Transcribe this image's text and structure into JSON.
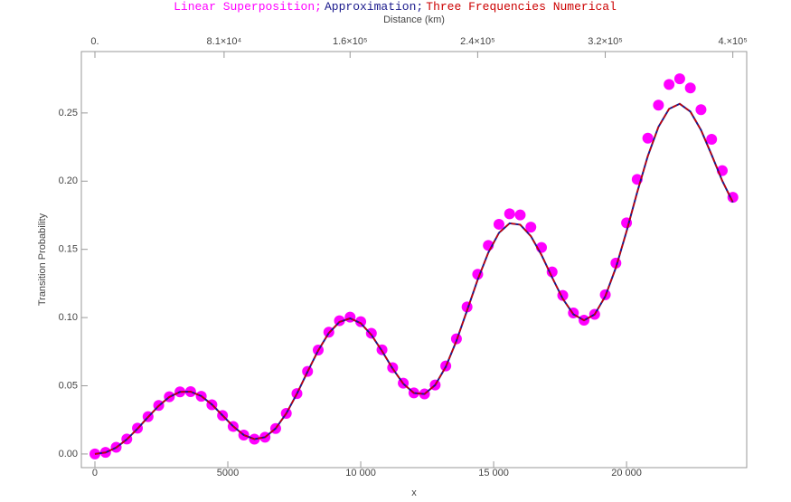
{
  "chart_data": {
    "type": "line",
    "x_label": "x",
    "x2_label": "Distance (km)",
    "y_label": "Transition Probability",
    "x": [
      0,
      400,
      800,
      1200,
      1600,
      2000,
      2400,
      2800,
      3200,
      3600,
      4000,
      4400,
      4800,
      5200,
      5600,
      6000,
      6400,
      6800,
      7200,
      7600,
      8000,
      8400,
      8800,
      9200,
      9600,
      10000,
      10400,
      10800,
      11200,
      11600,
      12000,
      12400,
      12800,
      13200,
      13600,
      14000,
      14400,
      14800,
      15200,
      15600,
      16000,
      16400,
      16800,
      17200,
      17600,
      18000,
      18400,
      18800,
      19200,
      19600,
      20000,
      20400,
      20800,
      21200,
      21600,
      22000,
      22400,
      22800,
      23200,
      23600,
      24000
    ],
    "series": [
      {
        "name": "Linear Superposition;",
        "color": "#ff00ff",
        "mode": "markers",
        "values": [
          0,
          0.0012,
          0.0049,
          0.011,
          0.0189,
          0.0274,
          0.0356,
          0.042,
          0.0455,
          0.0457,
          0.0423,
          0.0361,
          0.0282,
          0.0202,
          0.0139,
          0.0109,
          0.0123,
          0.0187,
          0.0298,
          0.0443,
          0.0605,
          0.0762,
          0.0893,
          0.0977,
          0.1003,
          0.097,
          0.0885,
          0.0764,
          0.0633,
          0.0519,
          0.0448,
          0.044,
          0.0506,
          0.0645,
          0.0844,
          0.1078,
          0.1317,
          0.1529,
          0.1684,
          0.1761,
          0.1752,
          0.1663,
          0.1514,
          0.1335,
          0.1162,
          0.1034,
          0.0981,
          0.1024,
          0.1167,
          0.1399,
          0.1694,
          0.2013,
          0.2315,
          0.2557,
          0.2709,
          0.275,
          0.2683,
          0.2524,
          0.2307,
          0.2077,
          0.1882
        ]
      },
      {
        "name": "Approximation;",
        "color": "#1a1a8c",
        "mode": "line",
        "values": [
          0,
          0.0011,
          0.0047,
          0.0107,
          0.0185,
          0.0271,
          0.0353,
          0.0418,
          0.0455,
          0.0457,
          0.0425,
          0.0363,
          0.0283,
          0.0203,
          0.0139,
          0.0109,
          0.0123,
          0.0187,
          0.0297,
          0.0442,
          0.0603,
          0.0759,
          0.0887,
          0.0968,
          0.0994,
          0.0959,
          0.0873,
          0.0755,
          0.0626,
          0.0515,
          0.0447,
          0.044,
          0.0505,
          0.0639,
          0.0829,
          0.1052,
          0.1278,
          0.1476,
          0.1621,
          0.1691,
          0.1681,
          0.1597,
          0.1459,
          0.1294,
          0.1138,
          0.1024,
          0.098,
          0.1023,
          0.1156,
          0.1367,
          0.1632,
          0.1918,
          0.2184,
          0.2398,
          0.253,
          0.2567,
          0.251,
          0.2375,
          0.2193,
          0.2003,
          0.1845
        ]
      },
      {
        "name": "Three Frequencies Numerical",
        "color": "#cc0000",
        "mode": "dashed",
        "values": [
          0,
          0.0011,
          0.0047,
          0.0107,
          0.0185,
          0.0271,
          0.0353,
          0.0418,
          0.0455,
          0.0457,
          0.0425,
          0.0363,
          0.0283,
          0.0203,
          0.0139,
          0.0109,
          0.0123,
          0.0187,
          0.0297,
          0.0442,
          0.0603,
          0.0759,
          0.0887,
          0.0968,
          0.0994,
          0.0959,
          0.0873,
          0.0755,
          0.0626,
          0.0515,
          0.0447,
          0.044,
          0.0505,
          0.0639,
          0.0829,
          0.1052,
          0.1278,
          0.1476,
          0.1621,
          0.1691,
          0.1681,
          0.1597,
          0.1459,
          0.1294,
          0.1138,
          0.1024,
          0.098,
          0.1023,
          0.1156,
          0.1367,
          0.1632,
          0.1918,
          0.2184,
          0.2398,
          0.253,
          0.2567,
          0.251,
          0.2375,
          0.2193,
          0.2003,
          0.1845
        ]
      }
    ],
    "xlim": [
      -510,
      24520
    ],
    "xticks": [
      0,
      5000,
      {
        "value": 10000,
        "label": "10 000"
      },
      {
        "value": 15000,
        "label": "15 000"
      },
      {
        "value": 20000,
        "label": "20 000"
      }
    ],
    "x2lim": [
      -8500,
      408700
    ],
    "x2ticks": [
      {
        "value": 0,
        "label": "0."
      },
      {
        "value": 81000,
        "label": "8.1×10⁴"
      },
      {
        "value": 160000,
        "label": "1.6×10⁵"
      },
      {
        "value": 240000,
        "label": "2.4×10⁵"
      },
      {
        "value": 320000,
        "label": "3.2×10⁵"
      },
      {
        "value": 400000,
        "label": "4.×10⁵"
      }
    ],
    "ylim": [
      -0.01,
      0.295
    ],
    "yticks": [
      {
        "value": 0,
        "label": "0.00"
      },
      0.05,
      {
        "value": 0.1,
        "label": "0.10"
      },
      0.15,
      {
        "value": 0.2,
        "label": "0.20"
      },
      0.25
    ]
  }
}
